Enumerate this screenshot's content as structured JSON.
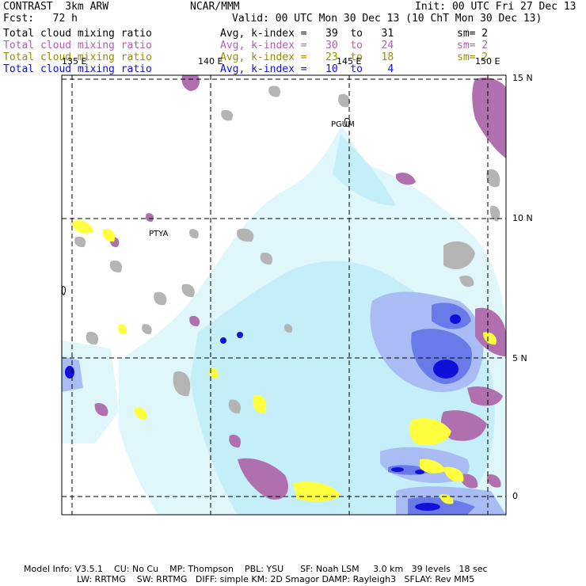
{
  "header": {
    "left_title": "CONTRAST  3km ARW",
    "center_title": "NCAR/MMM",
    "init": "Init: 00 UTC Fri 27 Dec 13",
    "fcst": "Fcst:   72 h",
    "valid": "Valid: 00 UTC Mon 30 Dec 13 (10 ChT Mon 30 Dec 13)"
  },
  "fields": [
    {
      "name": "Total cloud mixing ratio",
      "range": "Avg, k-index =   39  to   31",
      "sm": "sm= 2",
      "color": "#000000"
    },
    {
      "name": "Total cloud mixing ratio",
      "range": "Avg, k-index =   30  to   24",
      "sm": "sm= 2",
      "color": "#b060b0"
    },
    {
      "name": "Total cloud mixing ratio",
      "range": "Avg, k-index =   23  to   18",
      "sm": "sm= 2",
      "color": "#909000"
    },
    {
      "name": "Total cloud mixing ratio",
      "range": "Avg, k-index =   10  to    4",
      "sm": "",
      "color": "#1010e0"
    }
  ],
  "map": {
    "lon_labels": [
      "135 E",
      "140 E",
      "145 E",
      "150 E"
    ],
    "lat_labels": [
      "15 N",
      "10 N",
      "5 N",
      "0"
    ],
    "stations": [
      "PGUM",
      "PTYA"
    ],
    "colors": {
      "light_cyan": "#dff6fb",
      "cyan": "#c4eef8",
      "light_blue": "#aabcf4",
      "mid_blue": "#6a7ae8",
      "dark_blue": "#1010d8",
      "purple": "#b070b0",
      "yellow": "#ffff40",
      "gray": "#b4b4b4"
    }
  },
  "footer": {
    "line1": "Model Info: V3.5.1    CU: No Cu    MP: Thompson    PBL: YSU      SF: Noah LSM     3.0 km   39 levels   18 sec",
    "line2": "LW: RRTMG    SW: RRTMG   DIFF: simple KM: 2D Smagor DAMP: Rayleigh3   SFLAY: Rev MM5"
  }
}
